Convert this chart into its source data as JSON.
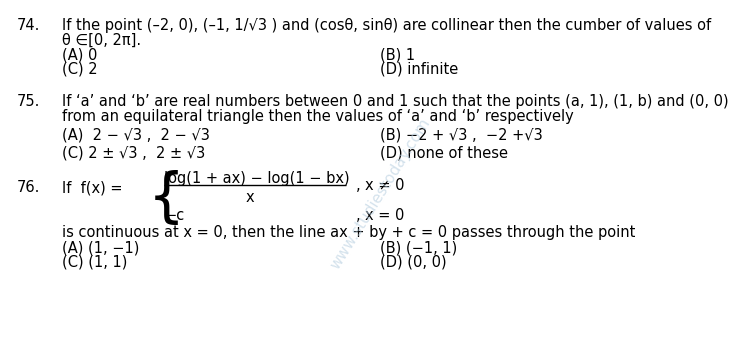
{
  "bg_color": "#ffffff",
  "text_color": "#000000",
  "font_size": 10.5,
  "q74_num": "74.",
  "q74_text": "If the point (–2, 0), (–1, 1/√3 ) and (cosθ, sinθ) are collinear then the cumber of values of",
  "q74_text2": "θ ∈[0, 2π].",
  "q74_A": "(A) 0",
  "q74_B": "(B) 1",
  "q74_C": "(C) 2",
  "q74_D": "(D) infinite",
  "q75_num": "75.",
  "q75_text": "If ‘a’ and ‘b’ are real numbers between 0 and 1 such that the points (a, 1), (1, b) and (0, 0)",
  "q75_text2": "from an equilateral triangle then the values of ‘a’ and ‘b’ respectively",
  "q75_A": "(A)  2 − √3 ,  2 − √3",
  "q75_B": "(B) −2 + √3 ,  −2 +√3",
  "q75_C": "(C) 2 ± √3 ,  2 ± √3",
  "q75_D": "(D) none of these",
  "q76_num": "76.",
  "q76_pre": "If  f(x) = ",
  "q76_frac_num": "log(1 + ax) − log(1 − bx)",
  "q76_frac_den": "x",
  "q76_cond1": "x ≠ 0",
  "q76_neg_c": "−c",
  "q76_cond2": "x = 0",
  "q76_cont": "is continuous at x = 0, then the line ax + by + c = 0 passes through the point",
  "q76_A": "(A) (1, −1)",
  "q76_B": "(B) (−1, 1)",
  "q76_C": "(C) (1, 1)",
  "q76_D": "(D) (0, 0)",
  "watermark": "www.studiestoday.com"
}
